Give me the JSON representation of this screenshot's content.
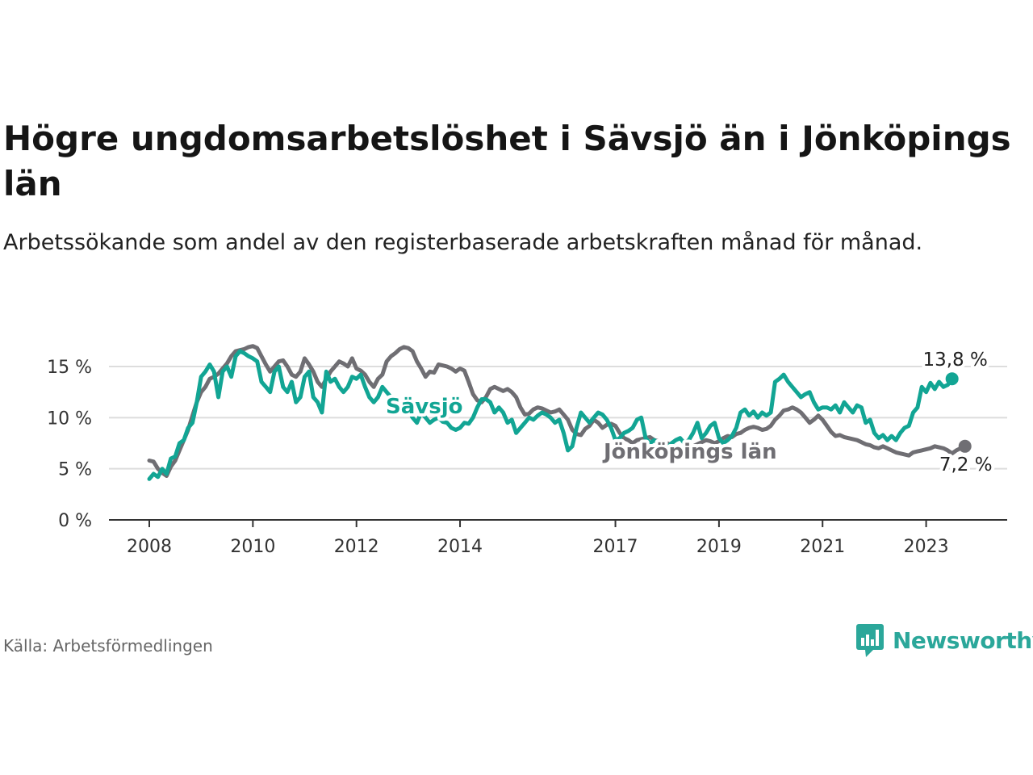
{
  "title": "Högre ungdomsarbetslöshet i Sävsjö än i Jönköpings län",
  "subtitle": "Arbetssökande som andel av den registerbaserade arbetskraften månad för månad.",
  "source": "Källa: Arbetsförmedlingen",
  "brand": "Newsworthy",
  "colors": {
    "savsjo": "#12a594",
    "jonkoping": "#6f6e73",
    "grid": "#dddddd",
    "axis": "#333333"
  },
  "chart_data": {
    "type": "line",
    "title": "Högre ungdomsarbetslöshet i Sävsjö än i Jönköpings län",
    "xlabel": "",
    "ylabel": "",
    "ylim": [
      0,
      17
    ],
    "xlim": [
      2007.8,
      2024.8
    ],
    "y_ticks": [
      0,
      5,
      10,
      15
    ],
    "y_tick_labels": [
      "0 %",
      "5 %",
      "10 %",
      "15 %"
    ],
    "x_ticks": [
      2008,
      2010,
      2012,
      2014,
      2017,
      2019,
      2021,
      2023
    ],
    "x_tick_labels": [
      "2008",
      "2010",
      "2012",
      "2014",
      "2017",
      "2019",
      "2021",
      "2023"
    ],
    "series": [
      {
        "name": "Sävsjö",
        "label": "Sävsjö",
        "end_label": "13,8 %",
        "color": "#12a594",
        "x_start": 2008.0,
        "x_step": 0.0833333,
        "values": [
          4.0,
          4.5,
          4.2,
          5.0,
          4.5,
          6.0,
          6.2,
          7.5,
          7.8,
          9.0,
          9.5,
          11.5,
          14.0,
          14.5,
          15.2,
          14.5,
          12.0,
          14.5,
          15.0,
          14.0,
          16.0,
          16.5,
          16.3,
          16.0,
          15.8,
          15.5,
          13.5,
          13.0,
          12.5,
          14.5,
          15.0,
          13.0,
          12.5,
          13.5,
          11.5,
          12.0,
          14.0,
          14.5,
          12.0,
          11.5,
          10.5,
          14.5,
          13.5,
          13.8,
          13.0,
          12.5,
          13.0,
          14.0,
          13.8,
          14.2,
          13.0,
          12.0,
          11.5,
          12.0,
          13.0,
          12.5,
          12.0,
          11.5,
          11.0,
          10.5,
          10.8,
          10.0,
          9.5,
          10.5,
          10.0,
          9.5,
          9.8,
          10.0,
          9.6,
          9.5,
          9.0,
          8.8,
          9.0,
          9.5,
          9.4,
          10.0,
          11.0,
          11.8,
          11.8,
          11.5,
          10.5,
          11.0,
          10.5,
          9.5,
          9.8,
          8.5,
          9.0,
          9.5,
          10.0,
          9.8,
          10.2,
          10.5,
          10.3,
          10.0,
          9.5,
          9.8,
          8.5,
          6.8,
          7.2,
          9.0,
          10.5,
          10.0,
          9.5,
          10.0,
          10.5,
          10.3,
          9.8,
          9.0,
          7.8,
          8.0,
          8.5,
          8.7,
          9.0,
          9.8,
          10.0,
          8.0,
          7.5,
          7.8,
          7.5,
          7.2,
          7.0,
          7.5,
          7.8,
          8.0,
          7.5,
          7.8,
          8.5,
          9.5,
          8.0,
          8.5,
          9.2,
          9.5,
          8.0,
          7.5,
          7.8,
          8.2,
          9.0,
          10.5,
          10.8,
          10.2,
          10.6,
          10.0,
          10.5,
          10.2,
          10.5,
          13.5,
          13.8,
          14.2,
          13.5,
          13.0,
          12.5,
          12.0,
          12.3,
          12.5,
          11.5,
          10.8,
          11.0,
          11.0,
          10.8,
          11.2,
          10.5,
          11.5,
          11.0,
          10.5,
          11.2,
          11.0,
          9.5,
          9.8,
          8.5,
          8.0,
          8.3,
          7.8,
          8.2,
          7.8,
          8.5,
          9.0,
          9.2,
          10.5,
          11.0,
          13.0,
          12.5,
          13.4,
          12.8,
          13.5,
          13.0,
          13.2,
          13.8
        ]
      },
      {
        "name": "Jönköpings län",
        "label": "Jönköpings län",
        "end_label": "7,2 %",
        "color": "#6f6e73",
        "x_start": 2008.0,
        "x_step": 0.0833333,
        "values": [
          5.8,
          5.7,
          5.0,
          4.6,
          4.3,
          5.2,
          5.8,
          6.8,
          7.8,
          8.8,
          10.2,
          11.5,
          12.5,
          13.0,
          13.8,
          14.0,
          14.3,
          14.8,
          15.3,
          16.0,
          16.5,
          16.6,
          16.7,
          16.9,
          17.0,
          16.8,
          16.0,
          15.2,
          14.5,
          15.0,
          15.5,
          15.6,
          15.0,
          14.2,
          14.0,
          14.5,
          15.8,
          15.2,
          14.5,
          13.5,
          13.0,
          13.8,
          14.5,
          15.0,
          15.5,
          15.3,
          15.0,
          15.8,
          14.8,
          14.6,
          14.2,
          13.5,
          13.0,
          13.8,
          14.2,
          15.5,
          16.0,
          16.3,
          16.7,
          16.9,
          16.8,
          16.5,
          15.5,
          14.8,
          14.0,
          14.5,
          14.4,
          15.2,
          15.1,
          15.0,
          14.8,
          14.5,
          14.8,
          14.6,
          13.5,
          12.3,
          11.7,
          11.5,
          12.0,
          12.8,
          13.0,
          12.8,
          12.6,
          12.8,
          12.5,
          12.0,
          11.0,
          10.3,
          10.4,
          10.8,
          11.0,
          10.9,
          10.7,
          10.5,
          10.6,
          10.8,
          10.3,
          9.8,
          8.8,
          8.4,
          8.3,
          8.9,
          9.2,
          9.8,
          9.5,
          9.0,
          9.3,
          9.4,
          9.2,
          8.5,
          8.0,
          7.8,
          7.5,
          7.8,
          7.9,
          8.0,
          8.1,
          7.8,
          7.7,
          7.6,
          7.5,
          7.3,
          7.2,
          7.1,
          7.0,
          7.1,
          7.2,
          7.4,
          7.6,
          7.8,
          7.7,
          7.5,
          7.7,
          8.0,
          8.2,
          8.1,
          8.4,
          8.5,
          8.8,
          9.0,
          9.1,
          9.0,
          8.8,
          8.9,
          9.2,
          9.8,
          10.2,
          10.7,
          10.8,
          11.0,
          10.8,
          10.5,
          10.0,
          9.5,
          9.8,
          10.2,
          9.8,
          9.2,
          8.6,
          8.2,
          8.3,
          8.1,
          8.0,
          7.9,
          7.8,
          7.6,
          7.4,
          7.3,
          7.1,
          7.0,
          7.2,
          7.0,
          6.8,
          6.6,
          6.5,
          6.4,
          6.3,
          6.6,
          6.7,
          6.8,
          6.9,
          7.0,
          7.2,
          7.1,
          7.0,
          6.8,
          6.5,
          6.8,
          7.0,
          7.2
        ]
      }
    ]
  }
}
